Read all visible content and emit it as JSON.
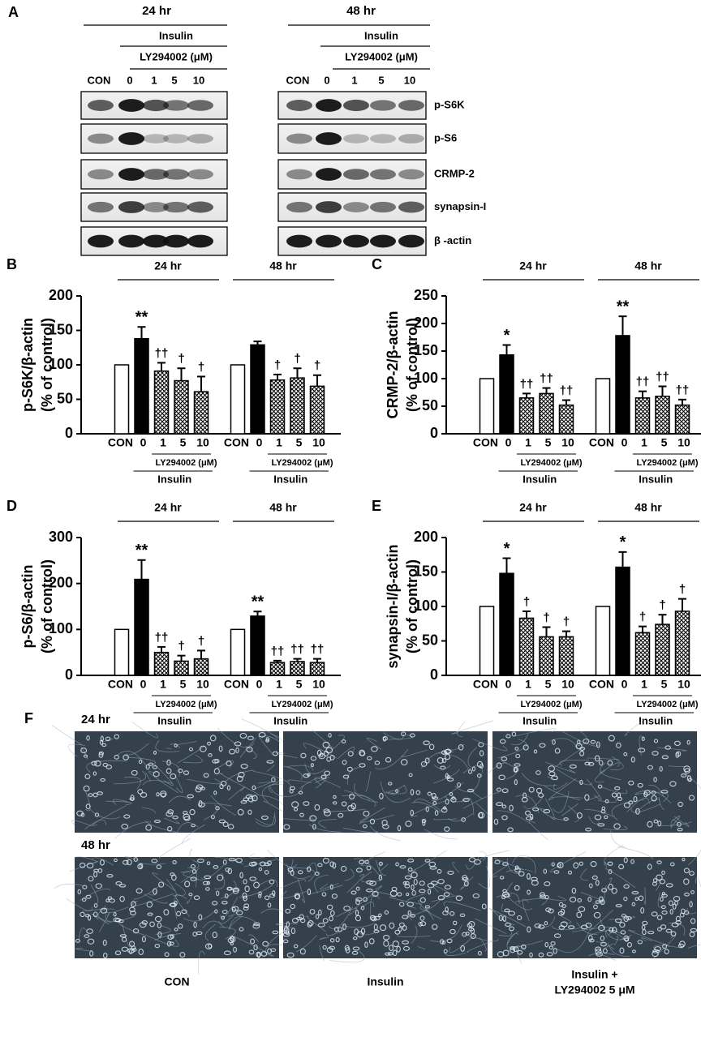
{
  "blots": {
    "panel": "A",
    "groups": [
      {
        "label": "24 hr",
        "treatment": "Insulin",
        "inhibitor": "LY294002 (μM)",
        "lanes": [
          "CON",
          "0",
          "1",
          "5",
          "10"
        ]
      },
      {
        "label": "48 hr",
        "treatment": "Insulin",
        "inhibitor": "LY294002 (μM)",
        "lanes": [
          "CON",
          "0",
          "1",
          "5",
          "10"
        ]
      }
    ],
    "proteins": [
      "p-S6K",
      "p-S6",
      "CRMP-2",
      "synapsin-I",
      "β -actin"
    ]
  },
  "chart_data": [
    {
      "type": "bar",
      "panel": "B",
      "ylabel": [
        "p-S6K/β-actin",
        "(% of control)"
      ],
      "groups": [
        "24 hr",
        "48 hr"
      ],
      "inhibitor": "LY294002 (μM)",
      "treatment": "Insulin",
      "categories": [
        "CON",
        "0",
        "1",
        "5",
        "10",
        "CON",
        "0",
        "1",
        "5",
        "10"
      ],
      "values": [
        100,
        138,
        91,
        77,
        61,
        100,
        129,
        78,
        81,
        69
      ],
      "errors": [
        0,
        17,
        12,
        18,
        22,
        0,
        5,
        8,
        14,
        16
      ],
      "annotations": [
        null,
        "**",
        "††",
        "†",
        "†",
        null,
        null,
        "†",
        "†",
        "†"
      ],
      "bar_styles": [
        "open",
        "filled",
        "hatched",
        "hatched",
        "hatched",
        "open",
        "filled",
        "hatched",
        "hatched",
        "hatched"
      ],
      "color": "#000000",
      "ylim": [
        0,
        200
      ],
      "yticks": [
        0,
        50,
        100,
        150,
        200
      ]
    },
    {
      "type": "bar",
      "panel": "C",
      "ylabel": [
        "CRMP-2/β-actin",
        "(% of control)"
      ],
      "groups": [
        "24 hr",
        "48 hr"
      ],
      "inhibitor": "LY294002 (μM)",
      "treatment": "Insulin",
      "categories": [
        "CON",
        "0",
        "1",
        "5",
        "10",
        "CON",
        "0",
        "1",
        "5",
        "10"
      ],
      "values": [
        100,
        143,
        65,
        73,
        52,
        100,
        178,
        65,
        68,
        52
      ],
      "errors": [
        0,
        18,
        8,
        10,
        9,
        0,
        35,
        12,
        18,
        10
      ],
      "annotations": [
        null,
        "*",
        "††",
        "††",
        "††",
        null,
        "**",
        "††",
        "††",
        "††"
      ],
      "bar_styles": [
        "open",
        "filled",
        "hatched",
        "hatched",
        "hatched",
        "open",
        "filled",
        "hatched",
        "hatched",
        "hatched"
      ],
      "color": "#000000",
      "ylim": [
        0,
        250
      ],
      "yticks": [
        0,
        50,
        100,
        150,
        200,
        250
      ]
    },
    {
      "type": "bar",
      "panel": "D",
      "ylabel": [
        "p-S6/β-actin",
        "(% of control)"
      ],
      "groups": [
        "24 hr",
        "48 hr"
      ],
      "inhibitor": "LY294002 (μM)",
      "treatment": "Insulin",
      "categories": [
        "CON",
        "0",
        "1",
        "5",
        "10",
        "CON",
        "0",
        "1",
        "5",
        "10"
      ],
      "values": [
        100,
        209,
        50,
        31,
        36,
        100,
        129,
        28,
        30,
        28
      ],
      "errors": [
        0,
        42,
        12,
        12,
        18,
        0,
        10,
        4,
        6,
        8
      ],
      "annotations": [
        null,
        "**",
        "††",
        "†",
        "†",
        null,
        "**",
        "††",
        "††",
        "††"
      ],
      "bar_styles": [
        "open",
        "filled",
        "hatched",
        "hatched",
        "hatched",
        "open",
        "filled",
        "hatched",
        "hatched",
        "hatched"
      ],
      "color": "#000000",
      "ylim": [
        0,
        300
      ],
      "yticks": [
        0,
        100,
        200,
        300
      ]
    },
    {
      "type": "bar",
      "panel": "E",
      "ylabel": [
        "synapsin-I/β-actin",
        "(% of control)"
      ],
      "groups": [
        "24 hr",
        "48 hr"
      ],
      "inhibitor": "LY294002 (μM)",
      "treatment": "Insulin",
      "categories": [
        "CON",
        "0",
        "1",
        "5",
        "10",
        "CON",
        "0",
        "1",
        "5",
        "10"
      ],
      "values": [
        100,
        148,
        83,
        56,
        56,
        100,
        157,
        62,
        74,
        93
      ],
      "errors": [
        0,
        22,
        10,
        14,
        8,
        0,
        22,
        9,
        14,
        18
      ],
      "annotations": [
        null,
        "*",
        "†",
        "†",
        "†",
        null,
        "*",
        "†",
        "†",
        "†"
      ],
      "bar_styles": [
        "open",
        "filled",
        "hatched",
        "hatched",
        "hatched",
        "open",
        "filled",
        "hatched",
        "hatched",
        "hatched"
      ],
      "color": "#000000",
      "ylim": [
        0,
        200
      ],
      "yticks": [
        0,
        50,
        100,
        150,
        200
      ]
    }
  ],
  "images": {
    "panel": "F",
    "rows": [
      "24 hr",
      "48 hr"
    ],
    "columns": [
      [
        "CON"
      ],
      [
        "Insulin"
      ],
      [
        "Insulin +",
        "LY294002 5 μM"
      ]
    ]
  }
}
